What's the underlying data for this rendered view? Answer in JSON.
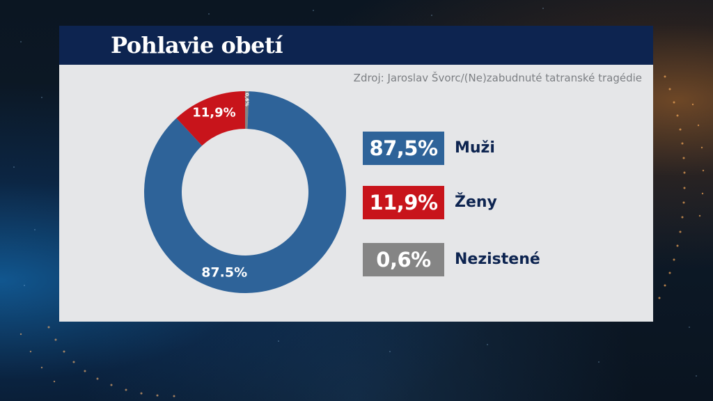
{
  "header": {
    "title": "Pohlavie obetí"
  },
  "source": "Zdroj: Jaroslav Švorc/(Ne)zabudnuté tatranské tragédie",
  "colors": {
    "men": "#2e6399",
    "women": "#c8141b",
    "unknown": "#858585",
    "header_bg": "#0d2450",
    "panel_bg": "#e5e6e8"
  },
  "chart_data": {
    "type": "pie",
    "title": "Pohlavie obetí",
    "donut": true,
    "legend_position": "right",
    "slices": [
      {
        "label": "Muži",
        "value": 87.5,
        "display": "87,5%",
        "ring_label": "87.5%",
        "color": "#2e6399"
      },
      {
        "label": "Ženy",
        "value": 11.9,
        "display": "11,9%",
        "ring_label": "11,9%",
        "color": "#c8141b"
      },
      {
        "label": "Nezistené",
        "value": 0.6,
        "display": "0,6%",
        "ring_label": "0,6%",
        "color": "#858585"
      }
    ]
  }
}
